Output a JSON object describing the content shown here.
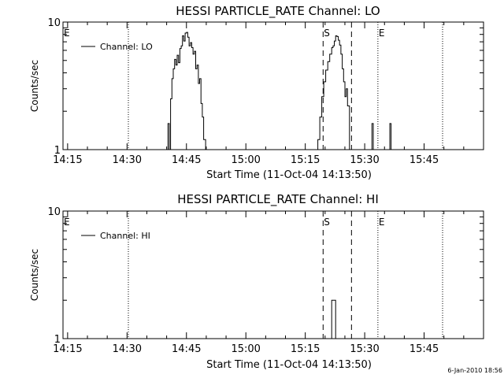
{
  "footer": {
    "timestamp": "6-Jan-2010 18:56"
  },
  "chart_data": [
    {
      "type": "line",
      "title": "HESSI PARTICLE_RATE Channel: LO",
      "xlabel": "Start Time (11-Oct-04 14:13:50)",
      "ylabel": "Counts/sec",
      "yscale": "log",
      "xlim": [
        "14:13:50",
        "16:00:00"
      ],
      "ylim": [
        1,
        10
      ],
      "xticks": [
        "14:15",
        "14:30",
        "14:45",
        "15:00",
        "15:15",
        "15:30",
        "15:45"
      ],
      "yticks": [
        "1",
        "10"
      ],
      "legend": {
        "label": "Channel: LO",
        "position": "top-left"
      },
      "markers": [
        {
          "label": "E",
          "time": "14:13:50",
          "style": "dotted"
        },
        {
          "label": "",
          "time": "14:30:20",
          "style": "dotted"
        },
        {
          "label": "S",
          "time": "15:19:30",
          "style": "dashed"
        },
        {
          "label": "",
          "time": "15:26:40",
          "style": "dashed"
        },
        {
          "label": "E",
          "time": "15:33:20",
          "style": "dotted"
        },
        {
          "label": "",
          "time": "15:49:40",
          "style": "dotted"
        }
      ],
      "series": [
        {
          "name": "Channel: LO",
          "x": [
            "14:39:50",
            "14:40:20",
            "14:40:40",
            "14:41:00",
            "14:41:20",
            "14:41:40",
            "14:42:00",
            "14:42:20",
            "14:42:40",
            "14:43:00",
            "14:43:20",
            "14:43:40",
            "14:44:00",
            "14:44:20",
            "14:44:40",
            "14:45:00",
            "14:45:20",
            "14:45:40",
            "14:46:00",
            "14:46:20",
            "14:46:40",
            "14:47:00",
            "14:47:20",
            "14:47:40",
            "14:48:00",
            "14:48:20",
            "14:48:40",
            "14:49:00",
            "14:49:20",
            "14:49:50",
            "15:17:40",
            "15:18:10",
            "15:18:40",
            "15:19:10",
            "15:19:40",
            "15:20:10",
            "15:20:40",
            "15:21:10",
            "15:21:40",
            "15:22:00",
            "15:22:20",
            "15:22:40",
            "15:23:00",
            "15:23:20",
            "15:23:40",
            "15:24:00",
            "15:24:20",
            "15:24:40",
            "15:25:00",
            "15:25:20",
            "15:25:40",
            "15:26:10",
            "15:31:30",
            "15:31:50",
            "15:32:10",
            "15:36:00",
            "15:36:20",
            "15:36:40"
          ],
          "values": [
            1,
            1.6,
            1,
            2.5,
            3.6,
            4.3,
            5.1,
            4.6,
            5.5,
            4.8,
            6.2,
            6.5,
            7.8,
            7.1,
            8.2,
            8.3,
            7.6,
            6.5,
            6.9,
            6.3,
            5.6,
            5.9,
            4.3,
            4.6,
            3.3,
            3.6,
            2.3,
            1.8,
            1.2,
            1,
            1,
            1.2,
            1.8,
            2.6,
            3.4,
            4.2,
            4.9,
            5.6,
            6.3,
            6.5,
            7.1,
            7.8,
            7.7,
            7.2,
            6.6,
            5.6,
            4.3,
            3.4,
            2.6,
            3.0,
            2.2,
            1,
            1,
            1.6,
            1,
            1,
            1.6,
            1
          ]
        }
      ]
    },
    {
      "type": "line",
      "title": "HESSI PARTICLE_RATE Channel: HI",
      "xlabel": "Start Time (11-Oct-04 14:13:50)",
      "ylabel": "Counts/sec",
      "yscale": "log",
      "xlim": [
        "14:13:50",
        "16:00:00"
      ],
      "ylim": [
        1,
        10
      ],
      "xticks": [
        "14:15",
        "14:30",
        "14:45",
        "15:00",
        "15:15",
        "15:30",
        "15:45"
      ],
      "yticks": [
        "1",
        "10"
      ],
      "legend": {
        "label": "Channel: HI",
        "position": "top-left"
      },
      "markers": [
        {
          "label": "E",
          "time": "14:13:50",
          "style": "dotted"
        },
        {
          "label": "",
          "time": "14:30:20",
          "style": "dotted"
        },
        {
          "label": "S",
          "time": "15:19:30",
          "style": "dashed"
        },
        {
          "label": "",
          "time": "15:26:40",
          "style": "dashed"
        },
        {
          "label": "E",
          "time": "15:33:20",
          "style": "dotted"
        },
        {
          "label": "",
          "time": "15:49:40",
          "style": "dotted"
        }
      ],
      "series": [
        {
          "name": "Channel: HI",
          "x": [
            "15:21:20",
            "15:21:40",
            "15:22:00",
            "15:22:20",
            "15:22:40"
          ],
          "values": [
            1,
            2,
            2,
            2,
            1
          ]
        }
      ]
    }
  ]
}
